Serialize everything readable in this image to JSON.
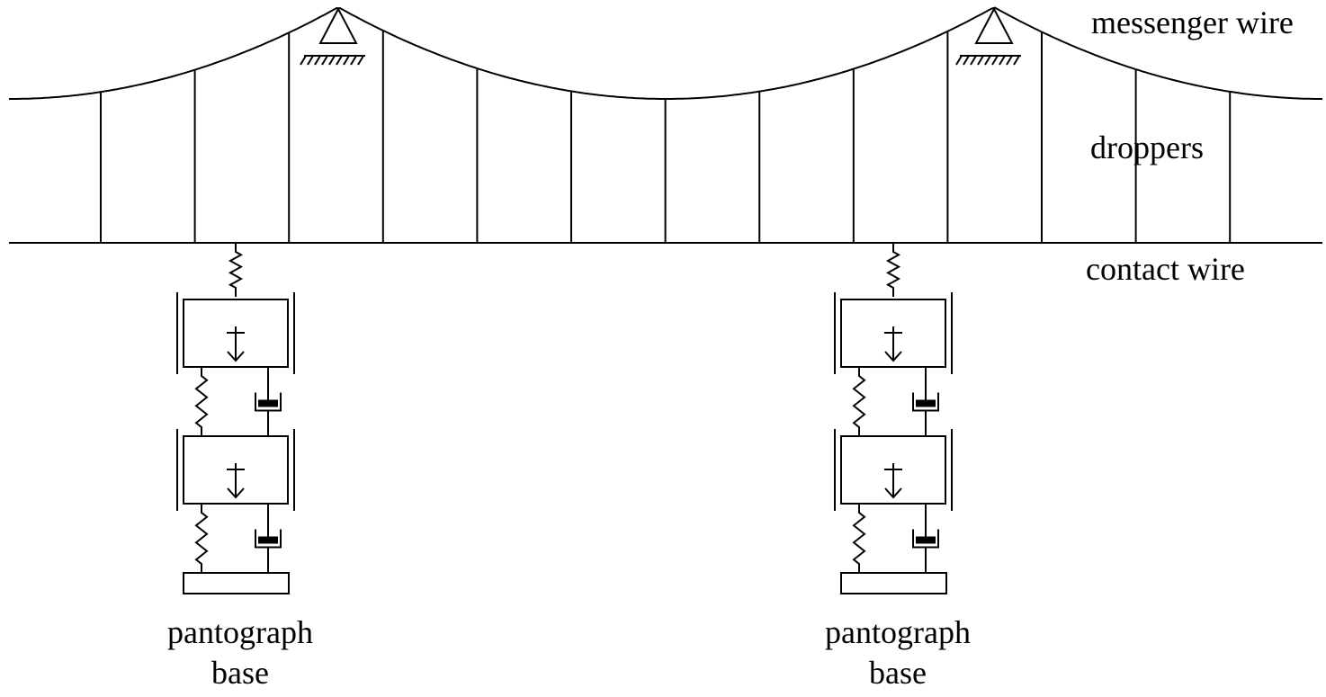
{
  "labels": {
    "messenger_wire": "messenger wire",
    "droppers": "droppers",
    "contact_wire": "contact wire"
  },
  "pantographs": [
    {
      "label": [
        "pantograph",
        "base"
      ]
    },
    {
      "label": [
        "pantograph",
        "base"
      ]
    }
  ]
}
